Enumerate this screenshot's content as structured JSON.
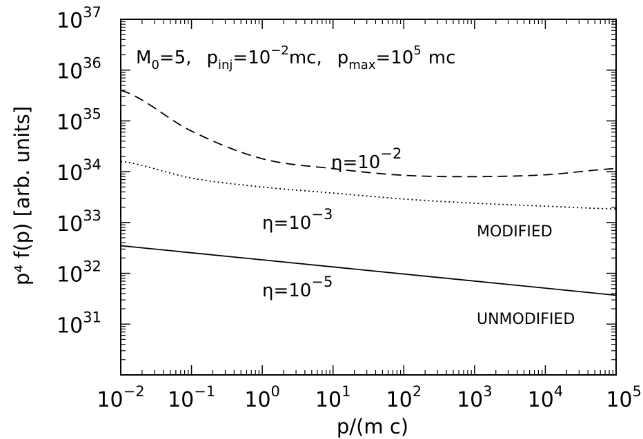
{
  "chart_data": {
    "type": "line",
    "title": "",
    "xlabel": "p/(m c)",
    "ylabel": "p⁴ f(p) [arb. units]",
    "xscale": "log",
    "yscale": "log",
    "xlim": [
      0.01,
      100000
    ],
    "ylim": [
      1e+30,
      1e+37
    ],
    "grid": false,
    "x_ticks": [
      {
        "base": "10",
        "exp": "−2",
        "value": 0.01
      },
      {
        "base": "10",
        "exp": "−1",
        "value": 0.1
      },
      {
        "base": "10",
        "exp": "0",
        "value": 1
      },
      {
        "base": "10",
        "exp": "1",
        "value": 10
      },
      {
        "base": "10",
        "exp": "2",
        "value": 100
      },
      {
        "base": "10",
        "exp": "3",
        "value": 1000
      },
      {
        "base": "10",
        "exp": "4",
        "value": 10000
      },
      {
        "base": "10",
        "exp": "5",
        "value": 100000
      }
    ],
    "y_ticks": [
      {
        "base": "10",
        "exp": "31",
        "value": 1e+31
      },
      {
        "base": "10",
        "exp": "32",
        "value": 1e+32
      },
      {
        "base": "10",
        "exp": "33",
        "value": 1e+33
      },
      {
        "base": "10",
        "exp": "34",
        "value": 1e+34
      },
      {
        "base": "10",
        "exp": "35",
        "value": 1e+35
      },
      {
        "base": "10",
        "exp": "36",
        "value": 1e+36
      },
      {
        "base": "10",
        "exp": "37",
        "value": 1e+37
      }
    ],
    "annotation": {
      "m_base": "M",
      "m_sub": "0",
      "m_rest": "=5,",
      "p_inj_base": "p",
      "p_inj_sub": "inj",
      "p_inj_eq": "=10",
      "p_inj_exp": "−2",
      "p_inj_unit": "mc,",
      "p_max_base": "p",
      "p_max_sub": "max",
      "p_max_eq": "=10",
      "p_max_exp": "5",
      "p_max_unit": "mc"
    },
    "series": [
      {
        "style": "dashed",
        "label_base": "η=10",
        "label_exp": "−2",
        "x": [
          0.01,
          0.1,
          1,
          10,
          100,
          1000,
          10000,
          100000
        ],
        "y": [
          4e+35,
          6.3e+34,
          1.8e+34,
          1.15e+34,
          8.5e+33,
          8e+33,
          8.7e+33,
          1.15e+34
        ]
      },
      {
        "style": "dotted",
        "label_base": "η=10",
        "label_exp": "−3",
        "x": [
          0.01,
          0.1,
          1,
          10,
          100,
          1000,
          10000,
          100000
        ],
        "y": [
          1.6e+34,
          7.5e+33,
          5e+33,
          3.8e+33,
          2.9e+33,
          2.4e+33,
          2.1e+33,
          1.85e+33
        ]
      },
      {
        "style": "solid",
        "label_base": "η=10",
        "label_exp": "−5",
        "x": [
          0.01,
          100000
        ],
        "y": [
          3.5e+32,
          3.7e+31
        ]
      }
    ],
    "region_labels": {
      "modified": "MODIFIED",
      "unmodified": "UNMODIFIED"
    }
  }
}
